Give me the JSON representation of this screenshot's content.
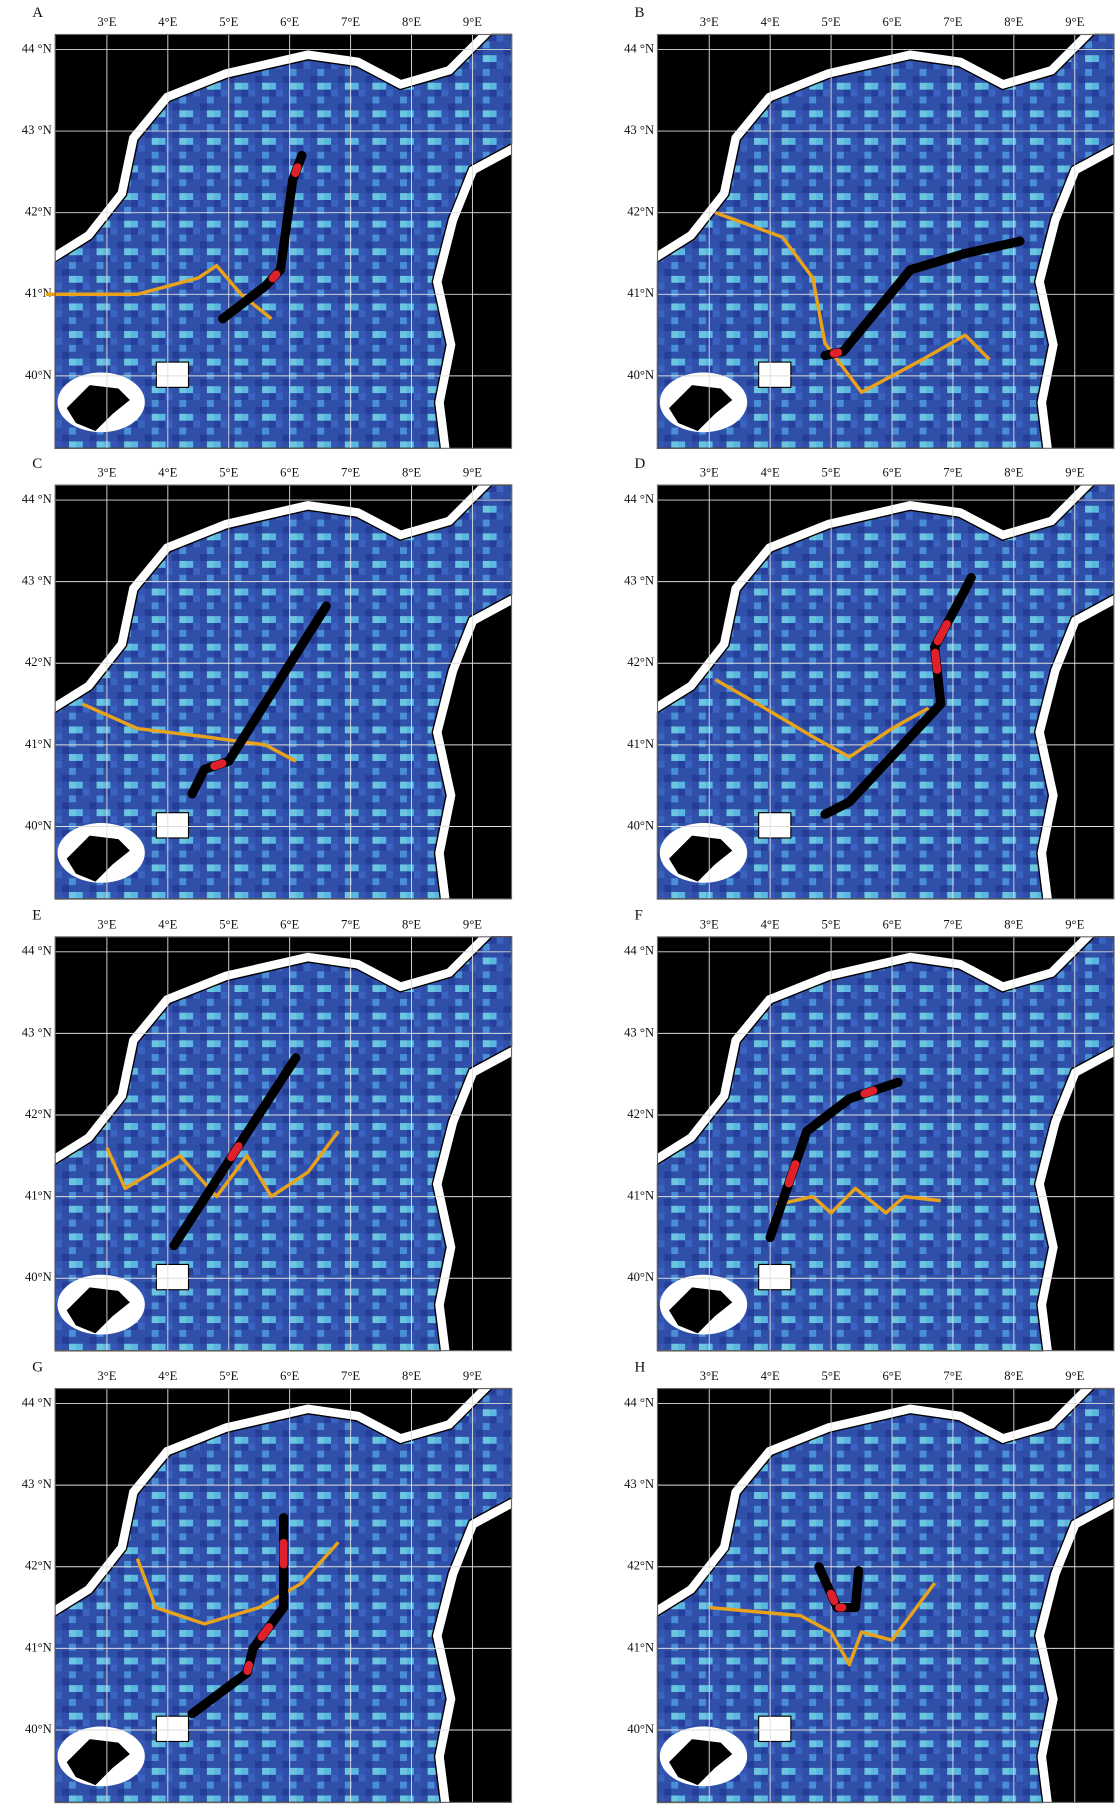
{
  "panels": [
    {
      "label": "A"
    },
    {
      "label": "B"
    },
    {
      "label": "C"
    },
    {
      "label": "D"
    },
    {
      "label": "E"
    },
    {
      "label": "F"
    },
    {
      "label": "G"
    },
    {
      "label": "H"
    }
  ],
  "lon_labels": [
    "3°E",
    "4°E",
    "5°E",
    "6°E",
    "7°E",
    "8°E",
    "9°E"
  ],
  "lat_labels": [
    "44 °N",
    "43 °N",
    "42°N",
    "41°N",
    "40°N"
  ]
}
